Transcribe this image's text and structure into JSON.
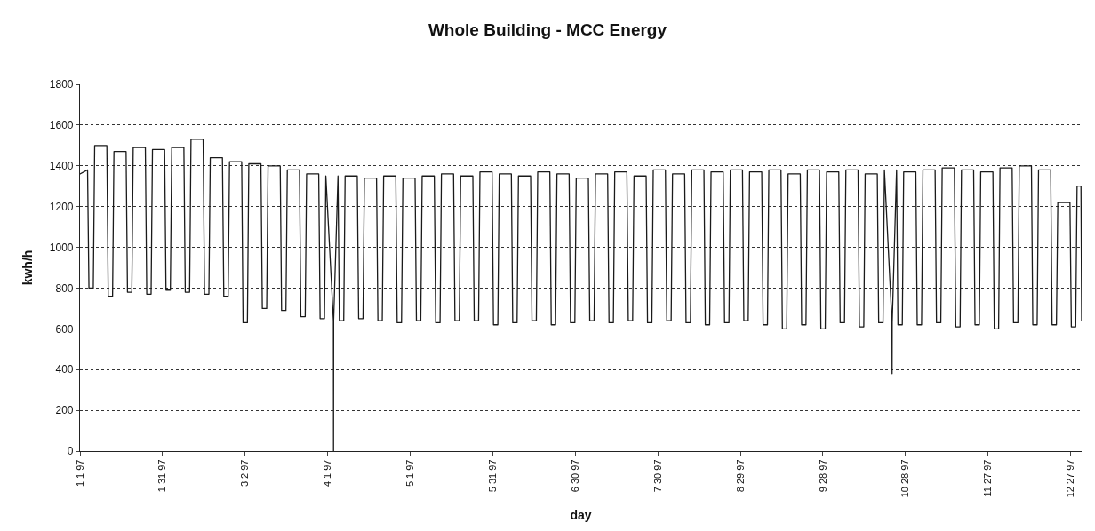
{
  "chart_data": {
    "type": "line",
    "title": "Whole Building - MCC Energy",
    "xlabel": "day",
    "ylabel": "kwh/h",
    "x": [
      "1997-01-01T00:00",
      "1997-01-03T18:00",
      "1997-01-04T06:00",
      "1997-01-05T20:00",
      "1997-01-06T08:00",
      "1997-01-10T18:00",
      "1997-01-11T06:00",
      "1997-01-12T20:00",
      "1997-01-13T08:00",
      "1997-01-17T18:00",
      "1997-01-18T06:00",
      "1997-01-19T20:00",
      "1997-01-20T08:00",
      "1997-01-24T18:00",
      "1997-01-25T06:00",
      "1997-01-26T20:00",
      "1997-01-27T08:00",
      "1997-01-31T18:00",
      "1997-02-01T06:00",
      "1997-02-02T20:00",
      "1997-02-03T08:00",
      "1997-02-07T18:00",
      "1997-02-08T06:00",
      "1997-02-09T20:00",
      "1997-02-10T08:00",
      "1997-02-14T18:00",
      "1997-02-15T06:00",
      "1997-02-16T20:00",
      "1997-02-17T08:00",
      "1997-02-21T18:00",
      "1997-02-22T06:00",
      "1997-02-23T20:00",
      "1997-02-24T08:00",
      "1997-02-28T18:00",
      "1997-03-01T06:00",
      "1997-03-02T20:00",
      "1997-03-03T08:00",
      "1997-03-07T18:00",
      "1997-03-08T06:00",
      "1997-03-09T20:00",
      "1997-03-10T08:00",
      "1997-03-14T18:00",
      "1997-03-15T06:00",
      "1997-03-16T20:00",
      "1997-03-17T08:00",
      "1997-03-21T18:00",
      "1997-03-22T06:00",
      "1997-03-23T20:00",
      "1997-03-24T08:00",
      "1997-03-28T18:00",
      "1997-03-29T06:00",
      "1997-03-30T20:00",
      "1997-03-31T08:00",
      "1997-04-03T02:00",
      "1997-04-03T03:00",
      "1997-04-03T04:00",
      "1997-04-04T18:00",
      "1997-04-05T06:00",
      "1997-04-06T20:00",
      "1997-04-07T08:00",
      "1997-04-11T18:00",
      "1997-04-12T06:00",
      "1997-04-13T20:00",
      "1997-04-14T08:00",
      "1997-04-18T18:00",
      "1997-04-19T06:00",
      "1997-04-20T20:00",
      "1997-04-21T08:00",
      "1997-04-25T18:00",
      "1997-04-26T06:00",
      "1997-04-27T20:00",
      "1997-04-28T08:00",
      "1997-05-02T18:00",
      "1997-05-03T06:00",
      "1997-05-04T20:00",
      "1997-05-05T08:00",
      "1997-05-09T18:00",
      "1997-05-10T06:00",
      "1997-05-11T20:00",
      "1997-05-12T08:00",
      "1997-05-16T18:00",
      "1997-05-17T06:00",
      "1997-05-18T20:00",
      "1997-05-19T08:00",
      "1997-05-23T18:00",
      "1997-05-24T06:00",
      "1997-05-25T20:00",
      "1997-05-26T08:00",
      "1997-05-30T18:00",
      "1997-05-31T06:00",
      "1997-06-01T20:00",
      "1997-06-02T08:00",
      "1997-06-06T18:00",
      "1997-06-07T06:00",
      "1997-06-08T20:00",
      "1997-06-09T08:00",
      "1997-06-13T18:00",
      "1997-06-14T06:00",
      "1997-06-15T20:00",
      "1997-06-16T08:00",
      "1997-06-20T18:00",
      "1997-06-21T06:00",
      "1997-06-22T20:00",
      "1997-06-23T08:00",
      "1997-06-27T18:00",
      "1997-06-28T06:00",
      "1997-06-29T20:00",
      "1997-06-30T08:00",
      "1997-07-04T18:00",
      "1997-07-05T06:00",
      "1997-07-06T20:00",
      "1997-07-07T08:00",
      "1997-07-11T18:00",
      "1997-07-12T06:00",
      "1997-07-13T20:00",
      "1997-07-14T08:00",
      "1997-07-18T18:00",
      "1997-07-19T06:00",
      "1997-07-20T20:00",
      "1997-07-21T08:00",
      "1997-07-25T18:00",
      "1997-07-26T06:00",
      "1997-07-27T20:00",
      "1997-07-28T08:00",
      "1997-08-01T18:00",
      "1997-08-02T06:00",
      "1997-08-03T20:00",
      "1997-08-04T08:00",
      "1997-08-08T18:00",
      "1997-08-09T06:00",
      "1997-08-10T20:00",
      "1997-08-11T08:00",
      "1997-08-15T18:00",
      "1997-08-16T06:00",
      "1997-08-17T20:00",
      "1997-08-18T08:00",
      "1997-08-22T18:00",
      "1997-08-23T06:00",
      "1997-08-24T20:00",
      "1997-08-25T08:00",
      "1997-08-29T18:00",
      "1997-08-30T06:00",
      "1997-08-31T20:00",
      "1997-09-01T08:00",
      "1997-09-05T18:00",
      "1997-09-06T06:00",
      "1997-09-07T20:00",
      "1997-09-08T08:00",
      "1997-09-12T18:00",
      "1997-09-13T06:00",
      "1997-09-14T20:00",
      "1997-09-15T08:00",
      "1997-09-19T18:00",
      "1997-09-20T06:00",
      "1997-09-21T20:00",
      "1997-09-22T08:00",
      "1997-09-26T18:00",
      "1997-09-27T06:00",
      "1997-09-28T20:00",
      "1997-09-29T08:00",
      "1997-10-03T18:00",
      "1997-10-04T06:00",
      "1997-10-05T20:00",
      "1997-10-06T08:00",
      "1997-10-10T18:00",
      "1997-10-11T06:00",
      "1997-10-12T20:00",
      "1997-10-13T08:00",
      "1997-10-17T18:00",
      "1997-10-18T06:00",
      "1997-10-19T20:00",
      "1997-10-20T08:00",
      "1997-10-23T02:00",
      "1997-10-23T03:00",
      "1997-10-23T04:00",
      "1997-10-24T18:00",
      "1997-10-25T06:00",
      "1997-10-26T20:00",
      "1997-10-27T08:00",
      "1997-10-31T18:00",
      "1997-11-01T06:00",
      "1997-11-02T20:00",
      "1997-11-03T08:00",
      "1997-11-07T18:00",
      "1997-11-08T06:00",
      "1997-11-09T20:00",
      "1997-11-10T08:00",
      "1997-11-14T18:00",
      "1997-11-15T06:00",
      "1997-11-16T20:00",
      "1997-11-17T08:00",
      "1997-11-21T18:00",
      "1997-11-22T06:00",
      "1997-11-23T20:00",
      "1997-11-24T08:00",
      "1997-11-28T18:00",
      "1997-11-29T06:00",
      "1997-11-30T20:00",
      "1997-12-01T08:00",
      "1997-12-05T18:00",
      "1997-12-06T06:00",
      "1997-12-07T20:00",
      "1997-12-08T08:00",
      "1997-12-12T18:00",
      "1997-12-13T06:00",
      "1997-12-14T20:00",
      "1997-12-15T08:00",
      "1997-12-19T18:00",
      "1997-12-20T06:00",
      "1997-12-21T20:00",
      "1997-12-22T08:00",
      "1997-12-26T18:00",
      "1997-12-27T06:00",
      "1997-12-28T20:00",
      "1997-12-29T08:00",
      "1997-12-30T18:00",
      "1997-12-31T00:00"
    ],
    "series": [
      {
        "color": "#1a1a1a",
        "values": [
          1360,
          1380,
          800,
          800,
          1500,
          1500,
          760,
          760,
          1470,
          1470,
          780,
          780,
          1490,
          1490,
          770,
          770,
          1480,
          1480,
          790,
          790,
          1490,
          1490,
          780,
          780,
          1530,
          1530,
          770,
          770,
          1440,
          1440,
          760,
          760,
          1420,
          1420,
          630,
          630,
          1410,
          1410,
          700,
          700,
          1400,
          1400,
          690,
          690,
          1380,
          1380,
          660,
          660,
          1360,
          1360,
          650,
          650,
          1350,
          640,
          0,
          640,
          1350,
          640,
          640,
          1350,
          1350,
          650,
          650,
          1340,
          1340,
          640,
          640,
          1350,
          1350,
          630,
          630,
          1340,
          1340,
          640,
          640,
          1350,
          1350,
          630,
          630,
          1360,
          1360,
          640,
          640,
          1350,
          1350,
          640,
          640,
          1370,
          1370,
          620,
          620,
          1360,
          1360,
          630,
          630,
          1350,
          1350,
          640,
          640,
          1370,
          1370,
          620,
          620,
          1360,
          1360,
          630,
          630,
          1340,
          1340,
          640,
          640,
          1360,
          1360,
          630,
          630,
          1370,
          1370,
          640,
          640,
          1350,
          1350,
          630,
          630,
          1380,
          1380,
          640,
          640,
          1360,
          1360,
          630,
          630,
          1380,
          1380,
          620,
          620,
          1370,
          1370,
          630,
          630,
          1380,
          1380,
          640,
          640,
          1370,
          1370,
          620,
          620,
          1380,
          1380,
          600,
          600,
          1360,
          1360,
          620,
          620,
          1380,
          1380,
          600,
          600,
          1370,
          1370,
          630,
          630,
          1380,
          1380,
          610,
          610,
          1360,
          1360,
          630,
          630,
          1380,
          630,
          380,
          630,
          1380,
          620,
          620,
          1370,
          1370,
          620,
          620,
          1380,
          1380,
          630,
          630,
          1390,
          1390,
          610,
          610,
          1380,
          1380,
          620,
          620,
          1370,
          1370,
          600,
          600,
          1390,
          1390,
          630,
          630,
          1400,
          1400,
          620,
          620,
          1380,
          1380,
          620,
          620,
          1220,
          1220,
          610,
          610,
          1300,
          1300,
          640
        ]
      }
    ],
    "xlim": [
      "1997-01-01",
      "1997-12-31"
    ],
    "xticks": [
      {
        "value": "1997-01-01",
        "label": "1 1 97"
      },
      {
        "value": "1997-01-31",
        "label": "1 31 97"
      },
      {
        "value": "1997-03-02",
        "label": "3 2 97"
      },
      {
        "value": "1997-04-01",
        "label": "4 1 97"
      },
      {
        "value": "1997-05-01",
        "label": "5 1 97"
      },
      {
        "value": "1997-05-31",
        "label": "5 31 97"
      },
      {
        "value": "1997-06-30",
        "label": "6 30 97"
      },
      {
        "value": "1997-07-30",
        "label": "7 30 97"
      },
      {
        "value": "1997-08-29",
        "label": "8 29 97"
      },
      {
        "value": "1997-09-28",
        "label": "9 28 97"
      },
      {
        "value": "1997-10-28",
        "label": "10 28 97"
      },
      {
        "value": "1997-11-27",
        "label": "11 27 97"
      },
      {
        "value": "1997-12-27",
        "label": "12 27 97"
      }
    ],
    "ylim": [
      0,
      1800
    ],
    "yticks": [
      0,
      200,
      400,
      600,
      800,
      1000,
      1200,
      1400,
      1600,
      1800
    ],
    "grid": "y",
    "marker": "none",
    "line_style": "solid"
  }
}
